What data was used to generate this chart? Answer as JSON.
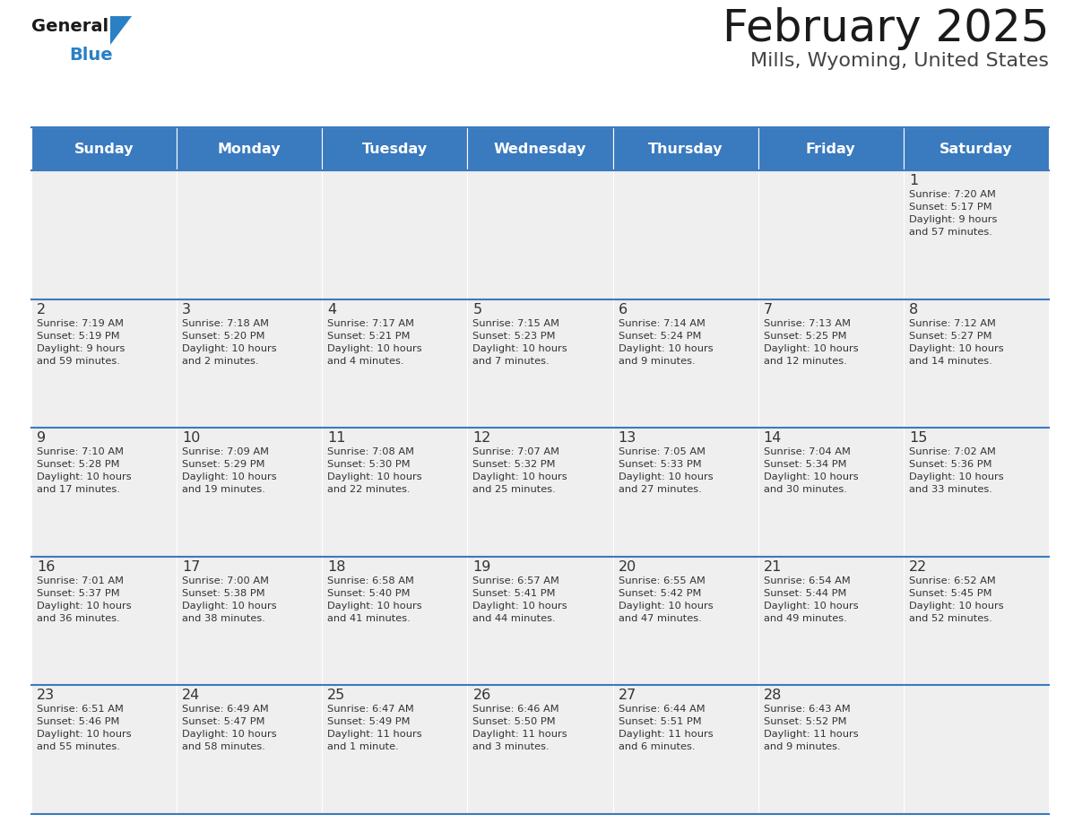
{
  "title": "February 2025",
  "subtitle": "Mills, Wyoming, United States",
  "days_of_week": [
    "Sunday",
    "Monday",
    "Tuesday",
    "Wednesday",
    "Thursday",
    "Friday",
    "Saturday"
  ],
  "header_bg": "#3a7abf",
  "header_text": "#ffffff",
  "cell_bg": "#efefef",
  "border_color": "#3a7abf",
  "text_color": "#333333",
  "logo_general_color": "#1a1a1a",
  "logo_blue_color": "#2980c4",
  "weeks": [
    [
      {
        "day": null,
        "info": null
      },
      {
        "day": null,
        "info": null
      },
      {
        "day": null,
        "info": null
      },
      {
        "day": null,
        "info": null
      },
      {
        "day": null,
        "info": null
      },
      {
        "day": null,
        "info": null
      },
      {
        "day": 1,
        "info": "Sunrise: 7:20 AM\nSunset: 5:17 PM\nDaylight: 9 hours\nand 57 minutes."
      }
    ],
    [
      {
        "day": 2,
        "info": "Sunrise: 7:19 AM\nSunset: 5:19 PM\nDaylight: 9 hours\nand 59 minutes."
      },
      {
        "day": 3,
        "info": "Sunrise: 7:18 AM\nSunset: 5:20 PM\nDaylight: 10 hours\nand 2 minutes."
      },
      {
        "day": 4,
        "info": "Sunrise: 7:17 AM\nSunset: 5:21 PM\nDaylight: 10 hours\nand 4 minutes."
      },
      {
        "day": 5,
        "info": "Sunrise: 7:15 AM\nSunset: 5:23 PM\nDaylight: 10 hours\nand 7 minutes."
      },
      {
        "day": 6,
        "info": "Sunrise: 7:14 AM\nSunset: 5:24 PM\nDaylight: 10 hours\nand 9 minutes."
      },
      {
        "day": 7,
        "info": "Sunrise: 7:13 AM\nSunset: 5:25 PM\nDaylight: 10 hours\nand 12 minutes."
      },
      {
        "day": 8,
        "info": "Sunrise: 7:12 AM\nSunset: 5:27 PM\nDaylight: 10 hours\nand 14 minutes."
      }
    ],
    [
      {
        "day": 9,
        "info": "Sunrise: 7:10 AM\nSunset: 5:28 PM\nDaylight: 10 hours\nand 17 minutes."
      },
      {
        "day": 10,
        "info": "Sunrise: 7:09 AM\nSunset: 5:29 PM\nDaylight: 10 hours\nand 19 minutes."
      },
      {
        "day": 11,
        "info": "Sunrise: 7:08 AM\nSunset: 5:30 PM\nDaylight: 10 hours\nand 22 minutes."
      },
      {
        "day": 12,
        "info": "Sunrise: 7:07 AM\nSunset: 5:32 PM\nDaylight: 10 hours\nand 25 minutes."
      },
      {
        "day": 13,
        "info": "Sunrise: 7:05 AM\nSunset: 5:33 PM\nDaylight: 10 hours\nand 27 minutes."
      },
      {
        "day": 14,
        "info": "Sunrise: 7:04 AM\nSunset: 5:34 PM\nDaylight: 10 hours\nand 30 minutes."
      },
      {
        "day": 15,
        "info": "Sunrise: 7:02 AM\nSunset: 5:36 PM\nDaylight: 10 hours\nand 33 minutes."
      }
    ],
    [
      {
        "day": 16,
        "info": "Sunrise: 7:01 AM\nSunset: 5:37 PM\nDaylight: 10 hours\nand 36 minutes."
      },
      {
        "day": 17,
        "info": "Sunrise: 7:00 AM\nSunset: 5:38 PM\nDaylight: 10 hours\nand 38 minutes."
      },
      {
        "day": 18,
        "info": "Sunrise: 6:58 AM\nSunset: 5:40 PM\nDaylight: 10 hours\nand 41 minutes."
      },
      {
        "day": 19,
        "info": "Sunrise: 6:57 AM\nSunset: 5:41 PM\nDaylight: 10 hours\nand 44 minutes."
      },
      {
        "day": 20,
        "info": "Sunrise: 6:55 AM\nSunset: 5:42 PM\nDaylight: 10 hours\nand 47 minutes."
      },
      {
        "day": 21,
        "info": "Sunrise: 6:54 AM\nSunset: 5:44 PM\nDaylight: 10 hours\nand 49 minutes."
      },
      {
        "day": 22,
        "info": "Sunrise: 6:52 AM\nSunset: 5:45 PM\nDaylight: 10 hours\nand 52 minutes."
      }
    ],
    [
      {
        "day": 23,
        "info": "Sunrise: 6:51 AM\nSunset: 5:46 PM\nDaylight: 10 hours\nand 55 minutes."
      },
      {
        "day": 24,
        "info": "Sunrise: 6:49 AM\nSunset: 5:47 PM\nDaylight: 10 hours\nand 58 minutes."
      },
      {
        "day": 25,
        "info": "Sunrise: 6:47 AM\nSunset: 5:49 PM\nDaylight: 11 hours\nand 1 minute."
      },
      {
        "day": 26,
        "info": "Sunrise: 6:46 AM\nSunset: 5:50 PM\nDaylight: 11 hours\nand 3 minutes."
      },
      {
        "day": 27,
        "info": "Sunrise: 6:44 AM\nSunset: 5:51 PM\nDaylight: 11 hours\nand 6 minutes."
      },
      {
        "day": 28,
        "info": "Sunrise: 6:43 AM\nSunset: 5:52 PM\nDaylight: 11 hours\nand 9 minutes."
      },
      {
        "day": null,
        "info": null
      }
    ]
  ],
  "fig_width": 11.88,
  "fig_height": 9.18,
  "dpi": 100
}
